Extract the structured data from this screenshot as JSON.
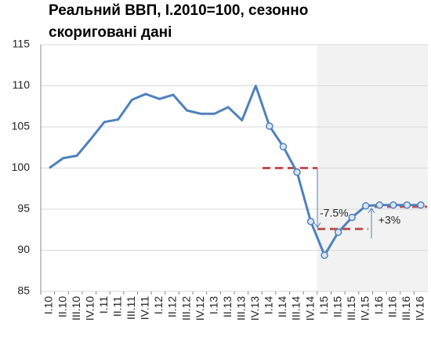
{
  "chart_data": {
    "type": "line",
    "title_lines": [
      "Реальний ВВП, I.2010=100, сезонно",
      "скориговані дані"
    ],
    "categories": [
      "I.10",
      "II.10",
      "III.10",
      "IV.10",
      "I.11",
      "II.11",
      "III.11",
      "IV.11",
      "I.12",
      "II.12",
      "III.12",
      "IV.12",
      "I.13",
      "II.13",
      "III.13",
      "IV.13",
      "I.14",
      "II.14",
      "III.14",
      "IV.14",
      "I.15",
      "II.15",
      "III.15",
      "IV.15",
      "I.16",
      "II.16",
      "III.16",
      "IV.16"
    ],
    "series": [
      {
        "name": "ВВП",
        "color": "#4f81bd",
        "values": [
          100,
          101.2,
          101.5,
          103.5,
          105.6,
          105.9,
          108.3,
          109,
          108.4,
          108.9,
          107,
          106.6,
          106.6,
          107.4,
          105.8,
          110,
          105.1,
          102.6,
          99.5,
          93.5,
          89.4,
          92.2,
          94,
          95.4,
          95.5,
          95.5,
          95.5,
          95.5
        ]
      }
    ],
    "ylim": [
      85,
      115
    ],
    "yticks": [
      85,
      90,
      95,
      100,
      105,
      110,
      115
    ],
    "grid": true,
    "reference_lines": [
      {
        "value": 100,
        "color": "#c0504d"
      },
      {
        "value": 92.6,
        "color": "#c0504d"
      },
      {
        "value": 95.3,
        "color": "#c0504d"
      }
    ],
    "annotations": [
      "-7.5%",
      "+3%"
    ]
  }
}
